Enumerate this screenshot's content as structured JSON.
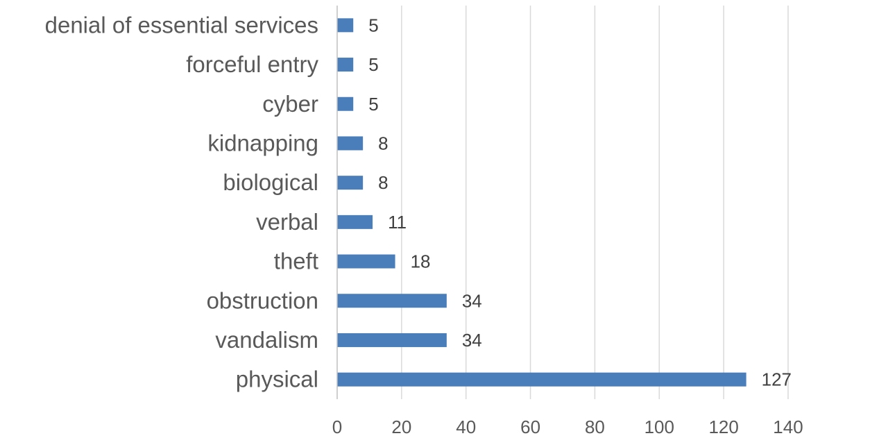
{
  "chart_data": {
    "type": "bar",
    "orientation": "horizontal",
    "title": "",
    "xlabel": "",
    "ylabel": "",
    "categories": [
      "physical",
      "vandalism",
      "obstruction",
      "theft",
      "verbal",
      "biological",
      "kidnapping",
      "cyber",
      "forceful entry",
      "denial of essential services"
    ],
    "values": [
      127,
      34,
      34,
      18,
      11,
      8,
      8,
      5,
      5,
      5
    ],
    "data_labels": [
      "127",
      "34",
      "34",
      "18",
      "11",
      "8",
      "8",
      "5",
      "5",
      "5"
    ],
    "xlim": [
      0,
      140
    ],
    "x_ticks": [
      0,
      20,
      40,
      60,
      80,
      100,
      120,
      140
    ],
    "x_tick_labels": [
      "0",
      "20",
      "40",
      "60",
      "80",
      "100",
      "120",
      "140"
    ],
    "category_order": "bottom-to-top",
    "grid": "vertical",
    "legend": "none",
    "bar_color": "#4a7ebb"
  }
}
